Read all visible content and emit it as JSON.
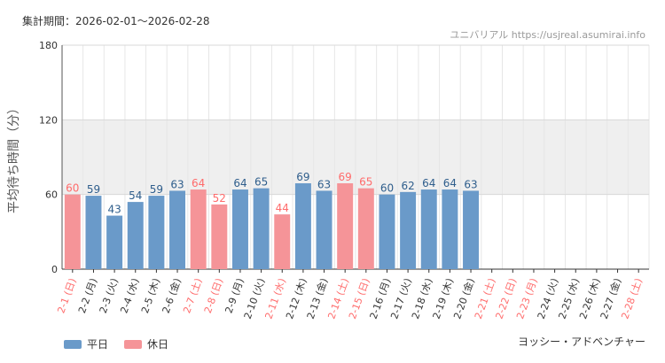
{
  "header": {
    "period_label": "集計期間：2026-02-01～2026-02-28",
    "watermark": "ユニバリアル  https://usjreal.asumirai.info"
  },
  "footer": {
    "credit": "ヨッシー・アドベンチャー"
  },
  "colors": {
    "weekday": "#6a9ac9",
    "holiday": "#f59498",
    "weekday_text": "#2f5e8c",
    "holiday_text": "#ff6b6b",
    "band": "#efefef"
  },
  "chart_data": {
    "type": "bar",
    "title": "",
    "xlabel": "",
    "ylabel": "平均待ち時間（分）",
    "ylim": [
      0,
      180
    ],
    "yticks": [
      0,
      60,
      120,
      180
    ],
    "shaded_band": [
      60,
      120
    ],
    "legend": [
      {
        "name": "平日",
        "color_key": "weekday"
      },
      {
        "name": "休日",
        "color_key": "holiday"
      }
    ],
    "categories": [
      "2-1 (日)",
      "2-2 (月)",
      "2-3 (火)",
      "2-4 (水)",
      "2-5 (木)",
      "2-6 (金)",
      "2-7 (土)",
      "2-8 (日)",
      "2-9 (月)",
      "2-10 (火)",
      "2-11 (水)",
      "2-12 (木)",
      "2-13 (金)",
      "2-14 (土)",
      "2-15 (日)",
      "2-16 (月)",
      "2-17 (火)",
      "2-18 (水)",
      "2-19 (木)",
      "2-20 (金)",
      "2-21 (土)",
      "2-22 (日)",
      "2-23 (月)",
      "2-24 (火)",
      "2-25 (水)",
      "2-26 (木)",
      "2-27 (金)",
      "2-28 (土)"
    ],
    "holiday": [
      true,
      false,
      false,
      false,
      false,
      false,
      true,
      true,
      false,
      false,
      true,
      false,
      false,
      true,
      true,
      false,
      false,
      false,
      false,
      false,
      true,
      true,
      true,
      false,
      false,
      false,
      false,
      true
    ],
    "values": [
      60,
      59,
      43,
      54,
      59,
      63,
      64,
      52,
      64,
      65,
      44,
      69,
      63,
      69,
      65,
      60,
      62,
      64,
      64,
      63,
      null,
      null,
      null,
      null,
      null,
      null,
      null,
      null
    ]
  }
}
